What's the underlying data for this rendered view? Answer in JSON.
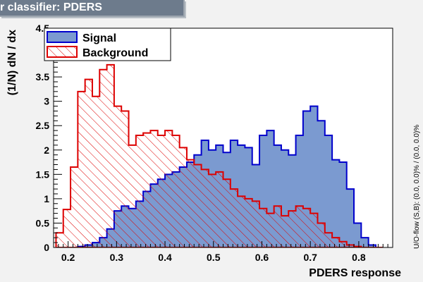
{
  "title": "r classifier: PDERS",
  "chart_data": {
    "type": "histogram",
    "xlabel": "PDERS response",
    "ylabel": "(1/N) dN / dx",
    "side_label": "U/O-flow (S,B): (0.0, 0.0)% / (0.0, 0.0)%",
    "xlim": [
      0.17,
      0.87
    ],
    "ylim": [
      0,
      4.5
    ],
    "x_ticks": [
      0.2,
      0.3,
      0.4,
      0.5,
      0.6,
      0.7,
      0.8
    ],
    "x_tick_labels": [
      "0.2",
      "0.3",
      "0.4",
      "0.5",
      "0.6",
      "0.7",
      "0.8"
    ],
    "y_ticks": [
      0,
      0.5,
      1,
      1.5,
      2,
      2.5,
      3,
      3.5,
      4,
      4.5
    ],
    "y_tick_labels": [
      "0",
      "0.5",
      "1",
      "1.5",
      "2",
      "2.5",
      "3",
      "3.5",
      "4",
      "4.5"
    ],
    "bin_start": 0.175,
    "bin_width": 0.015,
    "legend_position": "top-left",
    "series": [
      {
        "name": "Signal",
        "style": "filled",
        "fill": "#7b9ad0",
        "stroke": "#0000cc",
        "values": [
          0,
          0,
          0,
          0.02,
          0.05,
          0.1,
          0.2,
          0.38,
          0.75,
          0.85,
          0.8,
          0.95,
          1.15,
          1.3,
          1.4,
          1.5,
          1.55,
          1.65,
          1.75,
          1.9,
          2.2,
          2.0,
          2.1,
          1.95,
          2.2,
          2.1,
          2.05,
          1.7,
          2.3,
          2.4,
          2.1,
          2.0,
          1.9,
          2.3,
          2.8,
          2.9,
          2.6,
          2.3,
          1.8,
          1.75,
          1.2,
          0.5,
          0.2,
          0.05,
          0
        ]
      },
      {
        "name": "Background",
        "style": "hatched",
        "fill": "#ffffff",
        "stroke": "#dd0000",
        "values": [
          0.3,
          0.78,
          1.65,
          3.2,
          3.45,
          3.1,
          3.65,
          3.75,
          2.9,
          2.8,
          2.1,
          2.3,
          2.35,
          2.4,
          2.3,
          2.4,
          2.3,
          2.05,
          1.8,
          1.7,
          1.6,
          1.5,
          1.55,
          1.4,
          1.2,
          1.05,
          1.0,
          0.95,
          0.8,
          0.7,
          0.85,
          0.65,
          0.75,
          0.85,
          0.8,
          0.7,
          0.5,
          0.3,
          0.2,
          0.12,
          0.05,
          0.02,
          0,
          0,
          0
        ]
      }
    ]
  }
}
